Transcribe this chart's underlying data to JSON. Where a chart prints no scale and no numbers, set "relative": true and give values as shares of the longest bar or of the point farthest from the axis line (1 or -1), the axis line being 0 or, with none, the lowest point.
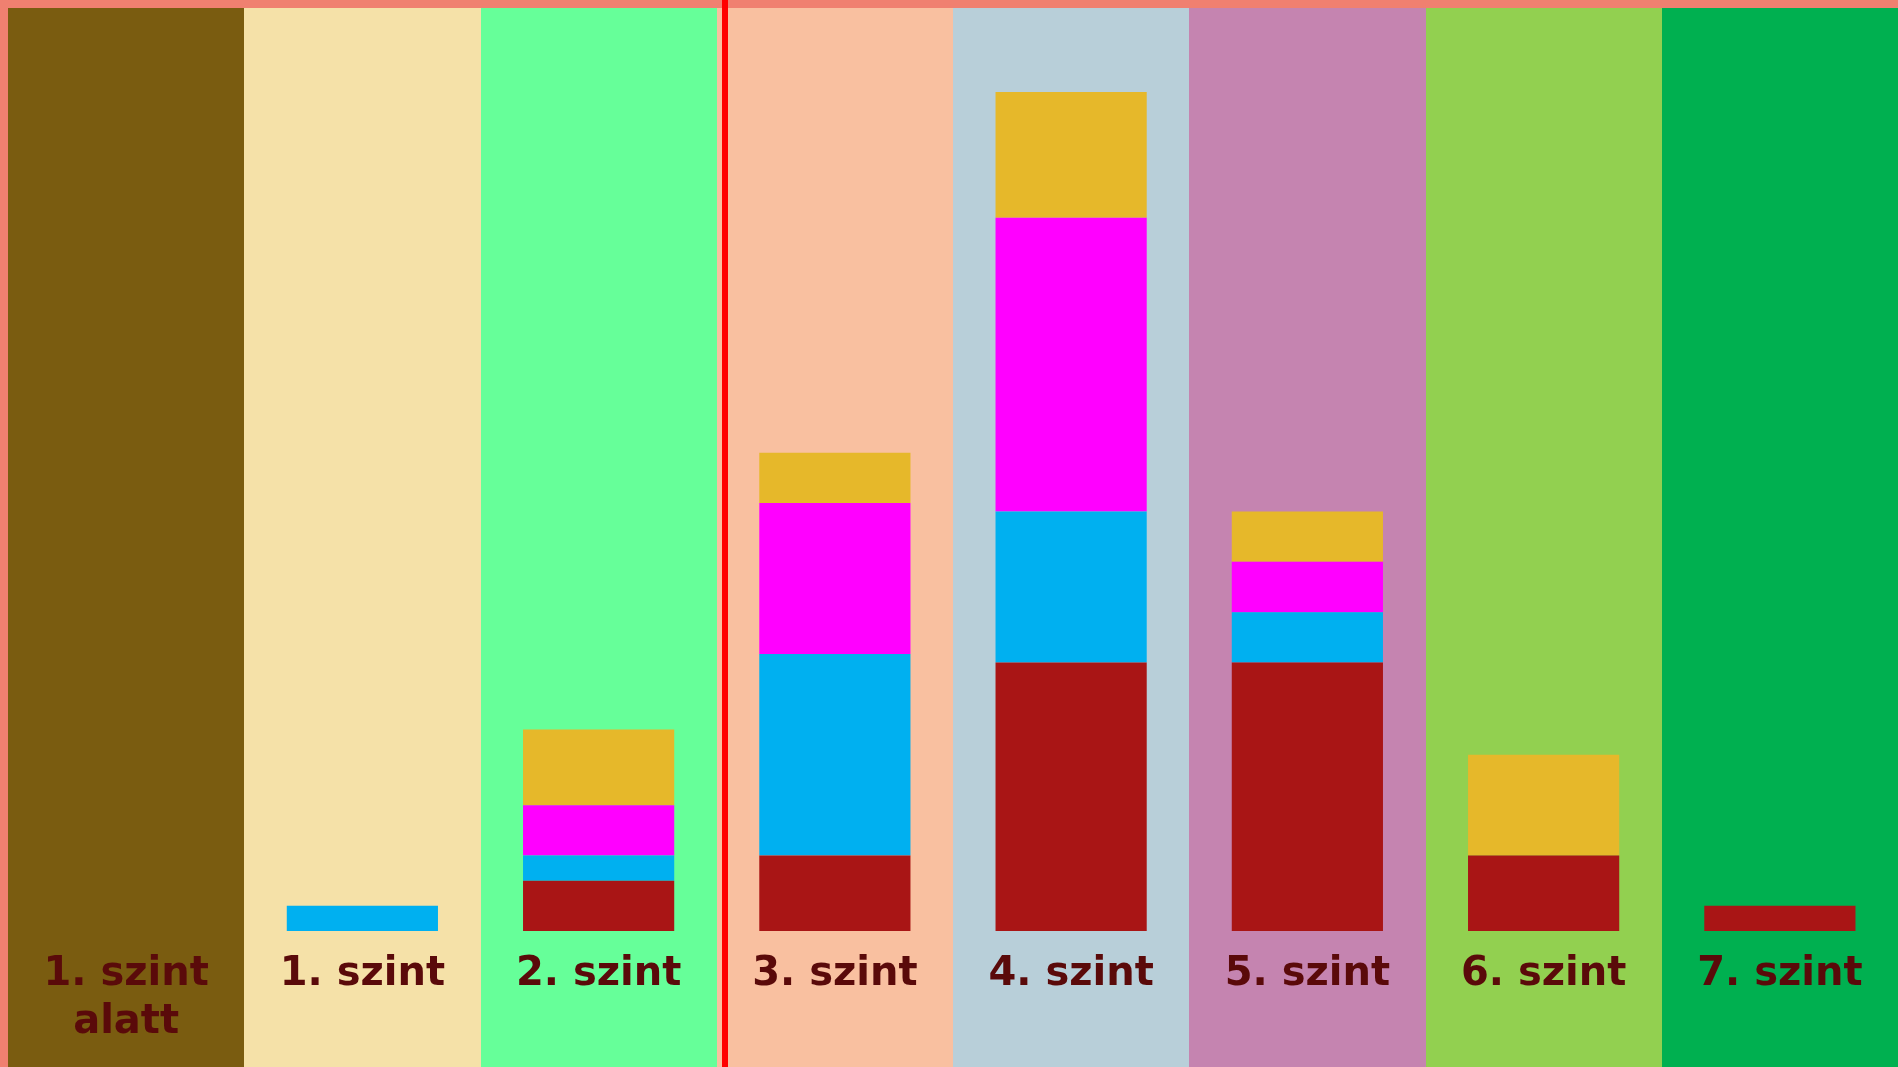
{
  "chart_data": {
    "type": "bar",
    "stacked": true,
    "relative": true,
    "legend": false,
    "grid": false,
    "categories": [
      "1. szint alatt",
      "1. szint",
      "2. szint",
      "3. szint",
      "4. szint",
      "5. szint",
      "6. szint",
      "7. szint"
    ],
    "series": [
      {
        "color": "#a91515",
        "values": [
          null,
          null,
          0.06,
          0.09,
          0.32,
          0.32,
          0.09,
          0.03
        ]
      },
      {
        "color": "#00b0f0",
        "values": [
          null,
          0.03,
          0.03,
          0.24,
          0.18,
          0.06,
          null,
          null
        ]
      },
      {
        "color": "#ff00ff",
        "values": [
          null,
          null,
          0.06,
          0.18,
          0.35,
          0.06,
          null,
          null
        ]
      },
      {
        "color": "#e6b82a",
        "values": [
          null,
          null,
          0.09,
          0.06,
          0.15,
          0.06,
          0.12,
          null
        ]
      }
    ]
  }
}
